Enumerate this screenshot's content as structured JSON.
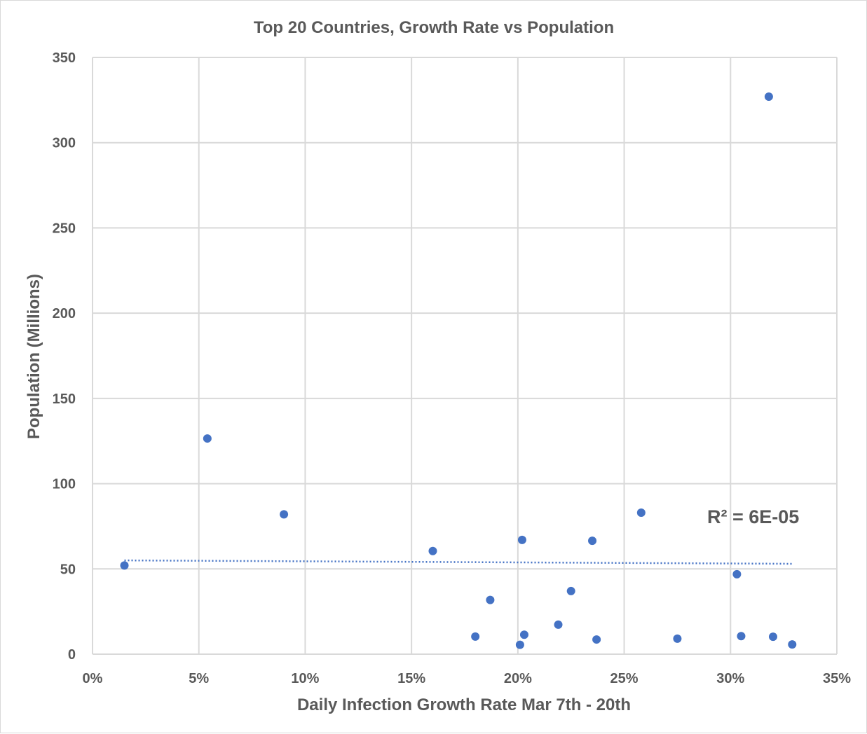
{
  "chart_data": {
    "type": "scatter",
    "title": "Top 20 Countries, Growth Rate vs Population",
    "xlabel": "Daily Infection Growth Rate Mar 7th - 20th",
    "ylabel": "Population (Millions)",
    "xlim": [
      0,
      0.35
    ],
    "ylim": [
      0,
      350
    ],
    "x_ticks": [
      "0%",
      "5%",
      "10%",
      "15%",
      "20%",
      "25%",
      "30%",
      "35%"
    ],
    "y_ticks": [
      "0",
      "50",
      "100",
      "150",
      "200",
      "250",
      "300",
      "350"
    ],
    "grid": true,
    "legend": "none",
    "series": [
      {
        "points": [
          {
            "x": 0.015,
            "y": 52
          },
          {
            "x": 0.054,
            "y": 126.5
          },
          {
            "x": 0.09,
            "y": 82
          },
          {
            "x": 0.16,
            "y": 60.5
          },
          {
            "x": 0.18,
            "y": 10.3
          },
          {
            "x": 0.187,
            "y": 31.8
          },
          {
            "x": 0.201,
            "y": 5.5
          },
          {
            "x": 0.202,
            "y": 67
          },
          {
            "x": 0.203,
            "y": 11.4
          },
          {
            "x": 0.219,
            "y": 17.3
          },
          {
            "x": 0.225,
            "y": 37
          },
          {
            "x": 0.235,
            "y": 66.5
          },
          {
            "x": 0.237,
            "y": 8.6
          },
          {
            "x": 0.258,
            "y": 83
          },
          {
            "x": 0.275,
            "y": 9.1
          },
          {
            "x": 0.303,
            "y": 46.9
          },
          {
            "x": 0.305,
            "y": 10.6
          },
          {
            "x": 0.318,
            "y": 327
          },
          {
            "x": 0.32,
            "y": 10.2
          },
          {
            "x": 0.329,
            "y": 5.7
          }
        ]
      }
    ],
    "trendline": {
      "style": "dotted linear",
      "x_start": 0.015,
      "y_start": 55,
      "x_end": 0.329,
      "y_end": 53
    },
    "annotations": [
      {
        "text": "R² = 6E-05"
      }
    ],
    "colors": {
      "points": "#4472c4",
      "grid": "#d9d9d9",
      "text": "#595959"
    }
  }
}
